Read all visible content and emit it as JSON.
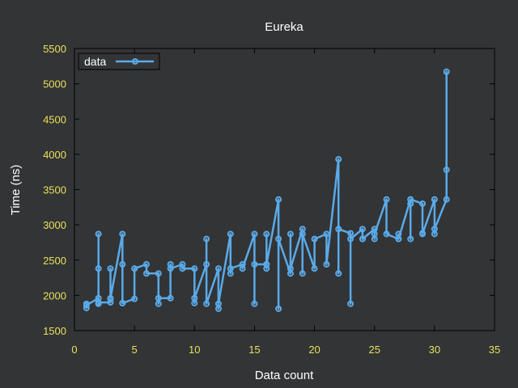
{
  "chart_data": {
    "type": "line",
    "title": "Eureka",
    "xlabel": "Data count",
    "ylabel": "Time (ns)",
    "xlim": [
      0,
      35
    ],
    "ylim": [
      1500,
      5500
    ],
    "xticks": [
      0,
      5,
      10,
      15,
      20,
      25,
      30,
      35
    ],
    "yticks": [
      1500,
      2000,
      2500,
      3000,
      3500,
      4000,
      4500,
      5000,
      5500
    ],
    "grid": false,
    "legend_position": "top-left",
    "colors": {
      "background": "#333436",
      "frame": "#000000",
      "series": "#5aaae8",
      "tick_text": "#e8e05a",
      "text": "#ffffff"
    },
    "series": [
      {
        "name": "data",
        "x": [
          1,
          1,
          1,
          2,
          2,
          2,
          2,
          2,
          3,
          3,
          3,
          3,
          4,
          4,
          4,
          4,
          5,
          5,
          6,
          6,
          7,
          7,
          7,
          8,
          8,
          8,
          9,
          9,
          10,
          10,
          10,
          11,
          11,
          11,
          12,
          12,
          12,
          13,
          13,
          13,
          14,
          14,
          15,
          15,
          15,
          16,
          16,
          16,
          16,
          17,
          17,
          17,
          18,
          18,
          18,
          19,
          19,
          19,
          20,
          20,
          21,
          21,
          22,
          22,
          22,
          23,
          23,
          23,
          24,
          24,
          24,
          25,
          25,
          25,
          26,
          26,
          27,
          27,
          27,
          28,
          28,
          28,
          28,
          29,
          29,
          29,
          30,
          30,
          30,
          31,
          31,
          31
        ],
        "y": [
          1880,
          1820,
          1860,
          1960,
          1880,
          2380,
          2870,
          1900,
          1900,
          1950,
          2380,
          1960,
          2870,
          2440,
          1890,
          1890,
          1950,
          2380,
          2440,
          2310,
          2310,
          1880,
          1960,
          1960,
          2440,
          2380,
          2440,
          2380,
          2380,
          1890,
          1960,
          2440,
          2800,
          1880,
          2380,
          1810,
          1880,
          2870,
          2310,
          2380,
          2440,
          2380,
          2870,
          1880,
          2440,
          2440,
          2870,
          2380,
          2440,
          3360,
          1810,
          2800,
          2310,
          2870,
          2380,
          2940,
          2310,
          2870,
          2380,
          2800,
          2870,
          2440,
          3930,
          2310,
          2940,
          2880,
          1880,
          2800,
          2940,
          2800,
          2800,
          2940,
          2800,
          2870,
          3360,
          2870,
          2800,
          2870,
          2800,
          3360,
          3300,
          2800,
          3360,
          3300,
          2880,
          2870,
          3360,
          2870,
          2940,
          3360,
          5170,
          3780
        ]
      }
    ]
  }
}
